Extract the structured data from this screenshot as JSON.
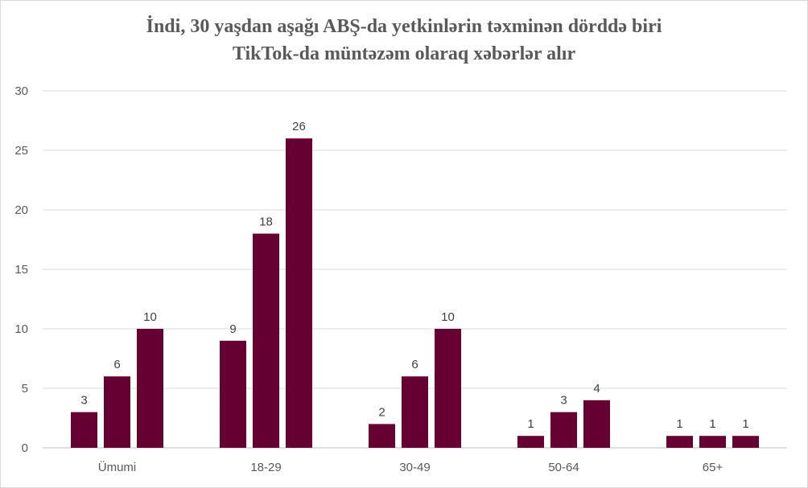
{
  "chart_data": {
    "type": "bar",
    "title_lines": [
      "İndi, 30 yaşdan aşağı ABŞ-da yetkinlərin təxminən dörddə biri",
      "TikTok-da müntəzəm olaraq xəbərlər alır"
    ],
    "categories": [
      "Ümumi",
      "18-29",
      "30-49",
      "50-64",
      "65+"
    ],
    "series": [
      {
        "values": [
          3,
          9,
          2,
          1,
          1
        ]
      },
      {
        "values": [
          6,
          18,
          6,
          3,
          1
        ]
      },
      {
        "values": [
          10,
          26,
          10,
          4,
          1
        ]
      }
    ],
    "ylim": [
      0,
      30
    ],
    "yticks": [
      0,
      5,
      10,
      15,
      20,
      25,
      30
    ],
    "grid": true,
    "legend": "none",
    "bar_color": "#660033",
    "data_labels": true
  }
}
